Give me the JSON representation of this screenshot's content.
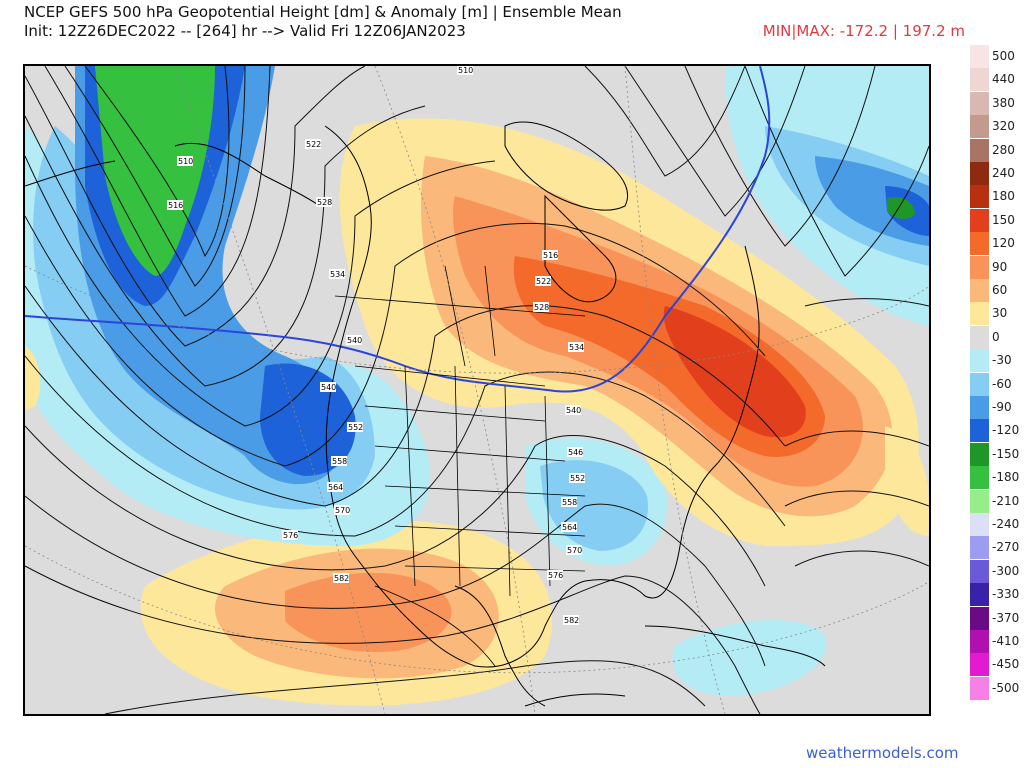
{
  "header": {
    "title_line1": "NCEP GEFS 500 hPa Geopotential Height [dm] & Anomaly [m] | Ensemble Mean",
    "title_line2": "Init: 12Z26DEC2022 -- [264] hr --> Valid Fri 12Z06JAN2023",
    "minmax": "MIN|MAX: -172.2 | 197.2 m"
  },
  "map": {
    "contour_labels": [
      "510",
      "516",
      "522",
      "528",
      "534",
      "540",
      "546",
      "552",
      "558",
      "564",
      "570",
      "576",
      "582"
    ],
    "bold_contour_label": "540"
  },
  "colorbar": {
    "unit": "m",
    "levels": [
      {
        "label": "500",
        "color": "#f8e4e4"
      },
      {
        "label": "440",
        "color": "#eed6d2"
      },
      {
        "label": "380",
        "color": "#d8b8b0"
      },
      {
        "label": "320",
        "color": "#c49a8c"
      },
      {
        "label": "280",
        "color": "#a87464"
      },
      {
        "label": "240",
        "color": "#8e2a10"
      },
      {
        "label": "180",
        "color": "#b83010"
      },
      {
        "label": "150",
        "color": "#e2401c"
      },
      {
        "label": "120",
        "color": "#f46a2a"
      },
      {
        "label": "90",
        "color": "#f8945a"
      },
      {
        "label": "60",
        "color": "#fab87a"
      },
      {
        "label": "30",
        "color": "#fde79a"
      },
      {
        "label": "0",
        "color": "#dcdcdc"
      },
      {
        "label": "-30",
        "color": "#b4ecf6"
      },
      {
        "label": "-60",
        "color": "#86cdf4"
      },
      {
        "label": "-90",
        "color": "#4a9ce6"
      },
      {
        "label": "-120",
        "color": "#1d62d8"
      },
      {
        "label": "-150",
        "color": "#1e9628"
      },
      {
        "label": "-180",
        "color": "#36c040"
      },
      {
        "label": "-210",
        "color": "#96ee88"
      },
      {
        "label": "-240",
        "color": "#dce0f6"
      },
      {
        "label": "-270",
        "color": "#9c9cf0"
      },
      {
        "label": "-300",
        "color": "#6a5ad8"
      },
      {
        "label": "-330",
        "color": "#3a22a8"
      },
      {
        "label": "-370",
        "color": "#6a0a86"
      },
      {
        "label": "-410",
        "color": "#b010b0"
      },
      {
        "label": "-450",
        "color": "#e21ad0"
      },
      {
        "label": "-500",
        "color": "#f680e8"
      }
    ]
  },
  "footer": {
    "credit": "weathermodels.com"
  }
}
